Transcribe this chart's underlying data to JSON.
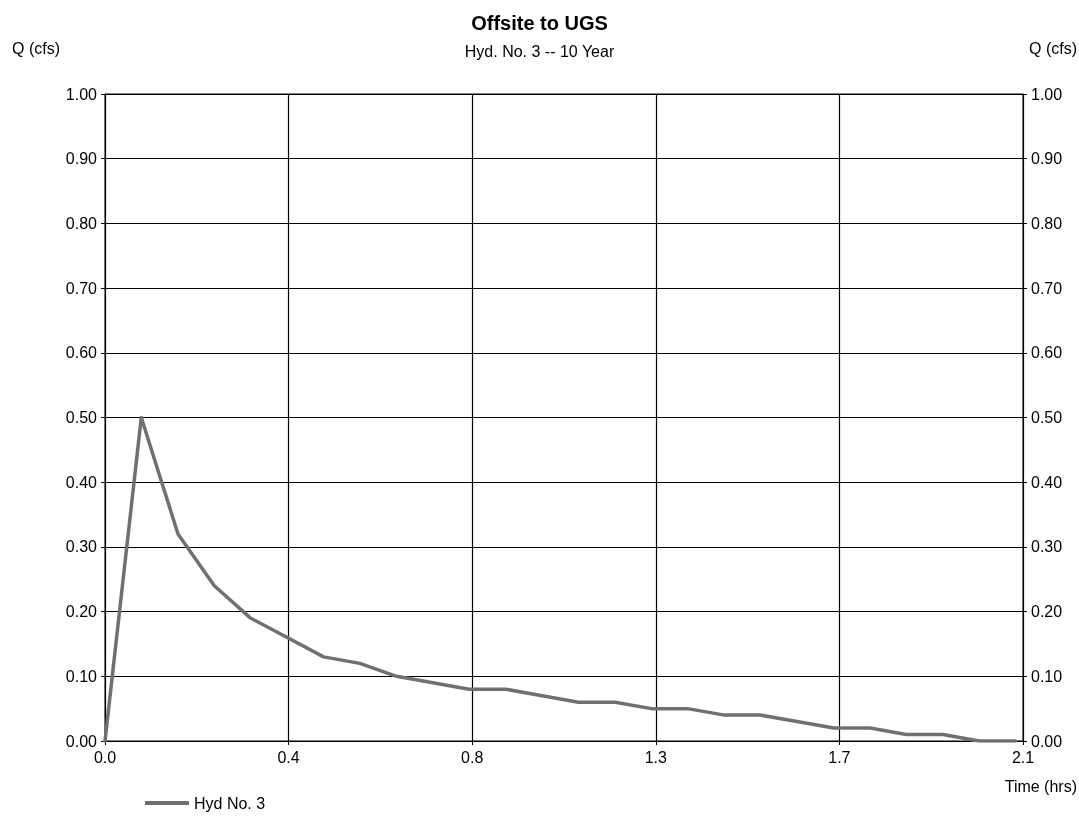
{
  "chart_data": {
    "type": "line",
    "title": "Offsite to UGS",
    "subtitle": "Hyd. No. 3 -- 10 Year",
    "xlabel": "Time (hrs)",
    "ylabel": "Q (cfs)",
    "y2label": "Q (cfs)",
    "x": [
      0,
      0.083,
      0.167,
      0.25,
      0.333,
      0.417,
      0.5,
      0.583,
      0.667,
      0.75,
      0.833,
      0.917,
      1.0,
      1.083,
      1.167,
      1.25,
      1.333,
      1.417,
      1.5,
      1.583,
      1.667,
      1.75,
      1.833,
      1.917,
      2.0,
      2.083
    ],
    "series": [
      {
        "name": "Hyd No. 3",
        "color": "#707070",
        "values": [
          0,
          0.5,
          0.32,
          0.24,
          0.19,
          0.16,
          0.13,
          0.12,
          0.1,
          0.09,
          0.08,
          0.08,
          0.07,
          0.06,
          0.06,
          0.05,
          0.05,
          0.04,
          0.04,
          0.03,
          0.02,
          0.02,
          0.01,
          0.01,
          0,
          0
        ]
      }
    ],
    "xlim": [
      0,
      2.1
    ],
    "xticks": [
      {
        "value": 0,
        "label": "0.0"
      },
      {
        "value": 0.42,
        "label": "0.4"
      },
      {
        "value": 0.84,
        "label": "0.8"
      },
      {
        "value": 1.26,
        "label": "1.3"
      },
      {
        "value": 1.68,
        "label": "1.7"
      },
      {
        "value": 2.1,
        "label": "2.1"
      }
    ],
    "ylim": [
      0,
      1
    ],
    "yticks": [
      {
        "value": 0,
        "label": "0.00"
      },
      {
        "value": 0.1,
        "label": "0.10"
      },
      {
        "value": 0.2,
        "label": "0.20"
      },
      {
        "value": 0.3,
        "label": "0.30"
      },
      {
        "value": 0.4,
        "label": "0.40"
      },
      {
        "value": 0.5,
        "label": "0.50"
      },
      {
        "value": 0.6,
        "label": "0.60"
      },
      {
        "value": 0.7,
        "label": "0.70"
      },
      {
        "value": 0.8,
        "label": "0.80"
      },
      {
        "value": 0.9,
        "label": "0.90"
      },
      {
        "value": 1,
        "label": "1.00"
      }
    ],
    "y2lim": [
      0,
      1
    ],
    "y2ticks": [
      {
        "value": 0,
        "label": "0.00"
      },
      {
        "value": 0.1,
        "label": "0.10"
      },
      {
        "value": 0.2,
        "label": "0.20"
      },
      {
        "value": 0.3,
        "label": "0.30"
      },
      {
        "value": 0.4,
        "label": "0.40"
      },
      {
        "value": 0.5,
        "label": "0.50"
      },
      {
        "value": 0.6,
        "label": "0.60"
      },
      {
        "value": 0.7,
        "label": "0.70"
      },
      {
        "value": 0.8,
        "label": "0.80"
      },
      {
        "value": 0.9,
        "label": "0.90"
      },
      {
        "value": 1,
        "label": "1.00"
      }
    ],
    "grid": true,
    "legend": "bottom left",
    "marker": "none",
    "line_style": "solid"
  }
}
